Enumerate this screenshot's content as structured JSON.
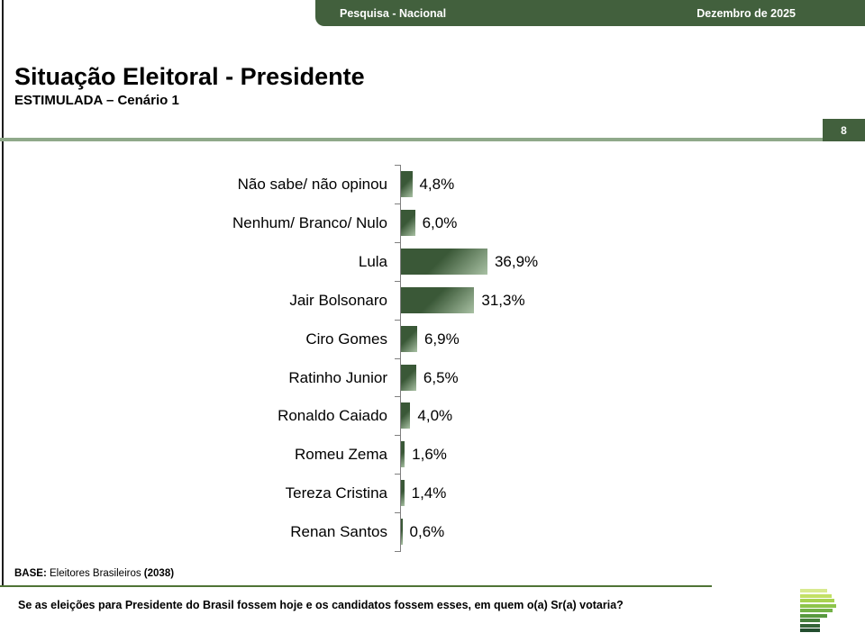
{
  "header": {
    "left_label": "Pesquisa - Nacional",
    "right_label": "Dezembro de 2025"
  },
  "title": {
    "main": "Situação Eleitoral - Presidente",
    "subtitle": "ESTIMULADA – Cenário 1"
  },
  "page_number": "8",
  "chart_data": {
    "type": "bar",
    "orientation": "horizontal",
    "categories": [
      "Não sabe/ não opinou",
      "Nenhum/ Branco/ Nulo",
      "Lula",
      "Jair Bolsonaro",
      "Ciro Gomes",
      "Ratinho Junior",
      "Ronaldo Caiado",
      "Romeu Zema",
      "Tereza Cristina",
      "Renan Santos"
    ],
    "values": [
      4.8,
      6.0,
      36.9,
      31.3,
      6.9,
      6.5,
      4.0,
      1.6,
      1.4,
      0.6
    ],
    "value_labels": [
      "4,8%",
      "6,0%",
      "36,9%",
      "31,3%",
      "6,9%",
      "6,5%",
      "4,0%",
      "1,6%",
      "1,4%",
      "0,6%"
    ],
    "title": "Situação Eleitoral - Presidente — ESTIMULADA – Cenário 1",
    "xlabel": "",
    "ylabel": "",
    "xlim": [
      0,
      100
    ],
    "grid": false,
    "legend": false,
    "bar_color_start": "#3A5837",
    "bar_color_end": "#A9C1A4",
    "axis_color": "#7f7f7f"
  },
  "footer": {
    "base_label": "BASE:",
    "base_text": " Eleitores Brasileiros ",
    "base_count": "(2038)",
    "question": "Se as eleições para Presidente do Brasil fossem hoje e os candidatos fossem esses, em quem o(a) Sr(a) votaria?"
  },
  "colors": {
    "dark_green": "#42603D",
    "sage": "#8FA98A",
    "divider_green": "#4F7336",
    "left_rule": "#1c1c1c"
  },
  "logo": {
    "name": "striped-p-logo",
    "bars": [
      {
        "width": 30,
        "color": "#D8EA8F"
      },
      {
        "width": 35,
        "color": "#C3E066"
      },
      {
        "width": 38,
        "color": "#A8D251"
      },
      {
        "width": 40,
        "color": "#8DC44B"
      },
      {
        "width": 36,
        "color": "#73B147"
      },
      {
        "width": 30,
        "color": "#58993F"
      },
      {
        "width": 22,
        "color": "#457F3B"
      },
      {
        "width": 22,
        "color": "#346437"
      },
      {
        "width": 22,
        "color": "#234E2F"
      }
    ]
  }
}
